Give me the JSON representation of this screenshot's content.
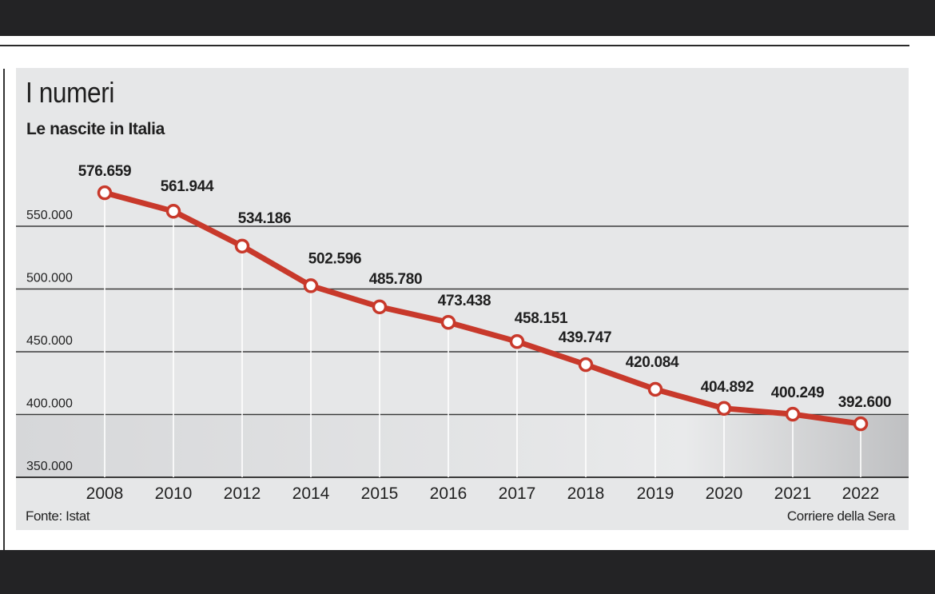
{
  "header": {
    "title": "I numeri",
    "subtitle": "Le nascite in Italia"
  },
  "footer": {
    "source": "Fonte: Istat",
    "publisher": "Corriere della Sera"
  },
  "colors": {
    "line": "#c8392b",
    "panel": "#e6e7e8",
    "grid": "#3a3a3a",
    "text": "#1f1f1f"
  },
  "chart_data": {
    "type": "line",
    "title": "Le nascite in Italia",
    "xlabel": "",
    "ylabel": "",
    "categories": [
      "2008",
      "2010",
      "2012",
      "2014",
      "2015",
      "2016",
      "2017",
      "2018",
      "2019",
      "2020",
      "2021",
      "2022"
    ],
    "values": [
      576659,
      561944,
      534186,
      502596,
      485780,
      473438,
      458151,
      439747,
      420084,
      404892,
      400249,
      392600
    ],
    "value_labels": [
      "576.659",
      "561.944",
      "534.186",
      "502.596",
      "485.780",
      "473.438",
      "458.151",
      "439.747",
      "420.084",
      "404.892",
      "400.249",
      "392.600"
    ],
    "y_ticks": [
      350000,
      400000,
      450000,
      500000,
      550000
    ],
    "y_tick_labels": [
      "350.000",
      "400.000",
      "450.000",
      "500.000",
      "550.000"
    ],
    "ylim": [
      350000,
      600000
    ],
    "grid": true,
    "legend": "none"
  }
}
